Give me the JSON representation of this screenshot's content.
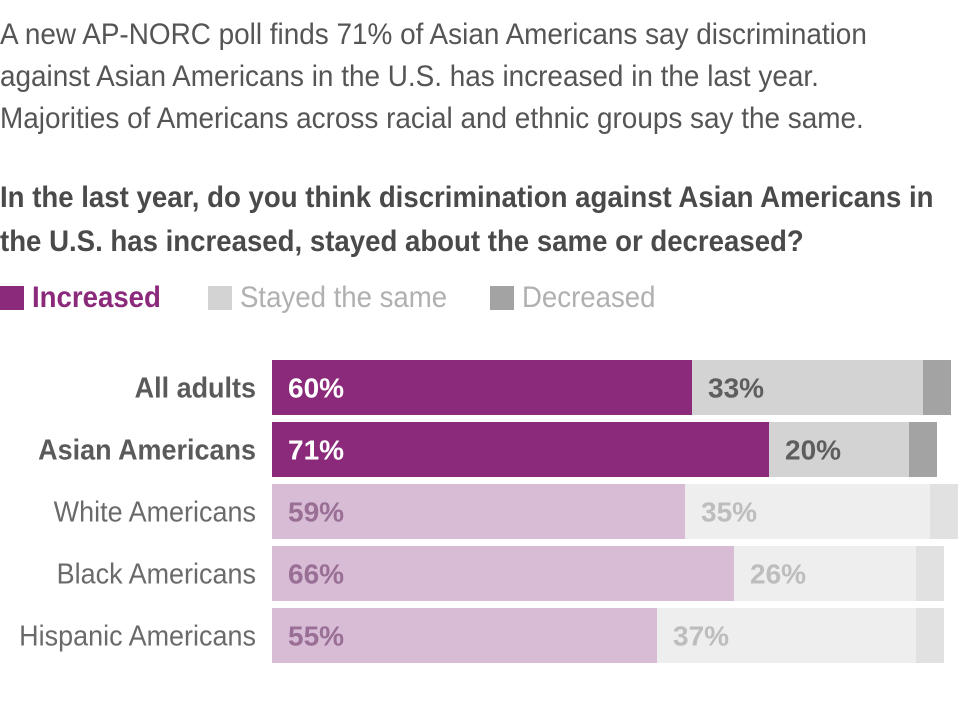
{
  "intro": "A new AP-NORC poll finds 71% of Asian Americans say discrimination against Asian Americans in the U.S. has increased in the last year. Majorities of Americans across racial and ethnic groups say the same.",
  "question": "In the last year, do you think discrimination against Asian Americans in the U.S. has increased, stayed about the same or decreased?",
  "legend": [
    {
      "label": "Increased",
      "color": "#8b2a7b"
    },
    {
      "label": "Stayed the same",
      "color": "#d3d3d3"
    },
    {
      "label": "Decreased",
      "color": "#a3a3a3"
    }
  ],
  "chart_data": {
    "type": "bar",
    "orientation": "horizontal",
    "stacked": true,
    "xlim": [
      0,
      100
    ],
    "categories": [
      "All adults",
      "Asian Americans",
      "White Americans",
      "Black Americans",
      "Hispanic Americans"
    ],
    "highlighted_categories": [
      "All adults",
      "Asian Americans"
    ],
    "series": [
      {
        "name": "Increased",
        "values": [
          60,
          71,
          59,
          66,
          55
        ]
      },
      {
        "name": "Stayed the same",
        "values": [
          33,
          20,
          35,
          26,
          37
        ]
      },
      {
        "name": "Decreased",
        "values": [
          4,
          4,
          4,
          4,
          4
        ]
      }
    ],
    "data_labels": {
      "Increased": [
        "60%",
        "71%",
        "59%",
        "66%",
        "55%"
      ],
      "Stayed the same": [
        "33%",
        "20%",
        "35%",
        "26%",
        "37%"
      ]
    },
    "colors": {
      "highlight": [
        "#8b2a7b",
        "#d3d3d3",
        "#a3a3a3"
      ],
      "muted": [
        "#d8bcd6",
        "#eeeeee",
        "#e1e1e1"
      ],
      "highlight_label": [
        "#ffffff",
        "#5e5e5e"
      ],
      "muted_label": [
        "#9a6f95",
        "#bdbdbd"
      ]
    }
  }
}
